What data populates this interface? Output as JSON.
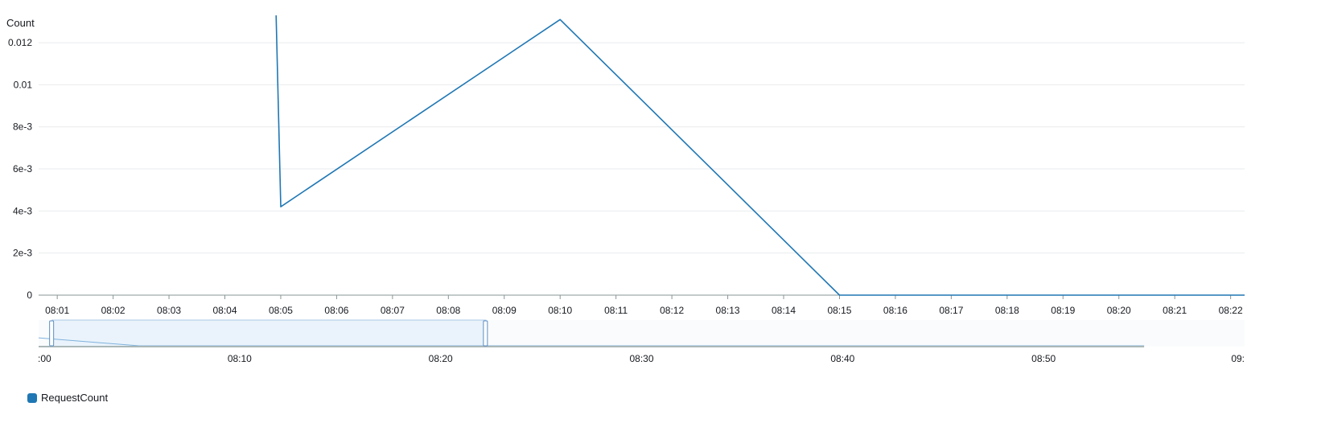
{
  "chart_data": {
    "type": "line",
    "unit_label": "Count",
    "y_ticks": [
      "0",
      "2e-3",
      "4e-3",
      "6e-3",
      "8e-3",
      "0.01",
      "0.012"
    ],
    "y_tick_values": [
      0,
      0.002,
      0.004,
      0.006,
      0.008,
      0.01,
      0.012
    ],
    "ylim": [
      0,
      0.0125
    ],
    "x_ticks": [
      "08:01",
      "08:02",
      "08:03",
      "08:04",
      "08:05",
      "08:06",
      "08:07",
      "08:08",
      "08:09",
      "08:10",
      "08:11",
      "08:12",
      "08:13",
      "08:14",
      "08:15",
      "08:16",
      "08:17",
      "08:18",
      "08:19",
      "08:20",
      "08:21",
      "08:22"
    ],
    "xlim": [
      "08:00:40",
      "08:22:15"
    ],
    "grid": true,
    "series": [
      {
        "name": "RequestCount",
        "color": "#1f77b4",
        "points": [
          {
            "x": "08:04:55",
            "y": 0.0133
          },
          {
            "x": "08:05:00",
            "y": 0.0042
          },
          {
            "x": "08:10:00",
            "y": 0.0131
          },
          {
            "x": "08:15:00",
            "y": 0
          },
          {
            "x": "08:22:15",
            "y": 0
          }
        ]
      }
    ],
    "navigator": {
      "x_ticks": [
        ":00",
        "08:10",
        "08:20",
        "08:30",
        "08:40",
        "08:50",
        "09:"
      ],
      "selected_range": [
        "08:00:40",
        "08:22:15"
      ]
    },
    "legend": {
      "position": "bottom-left",
      "items": [
        {
          "label": "RequestCount",
          "color": "#1f77b4"
        }
      ]
    }
  }
}
